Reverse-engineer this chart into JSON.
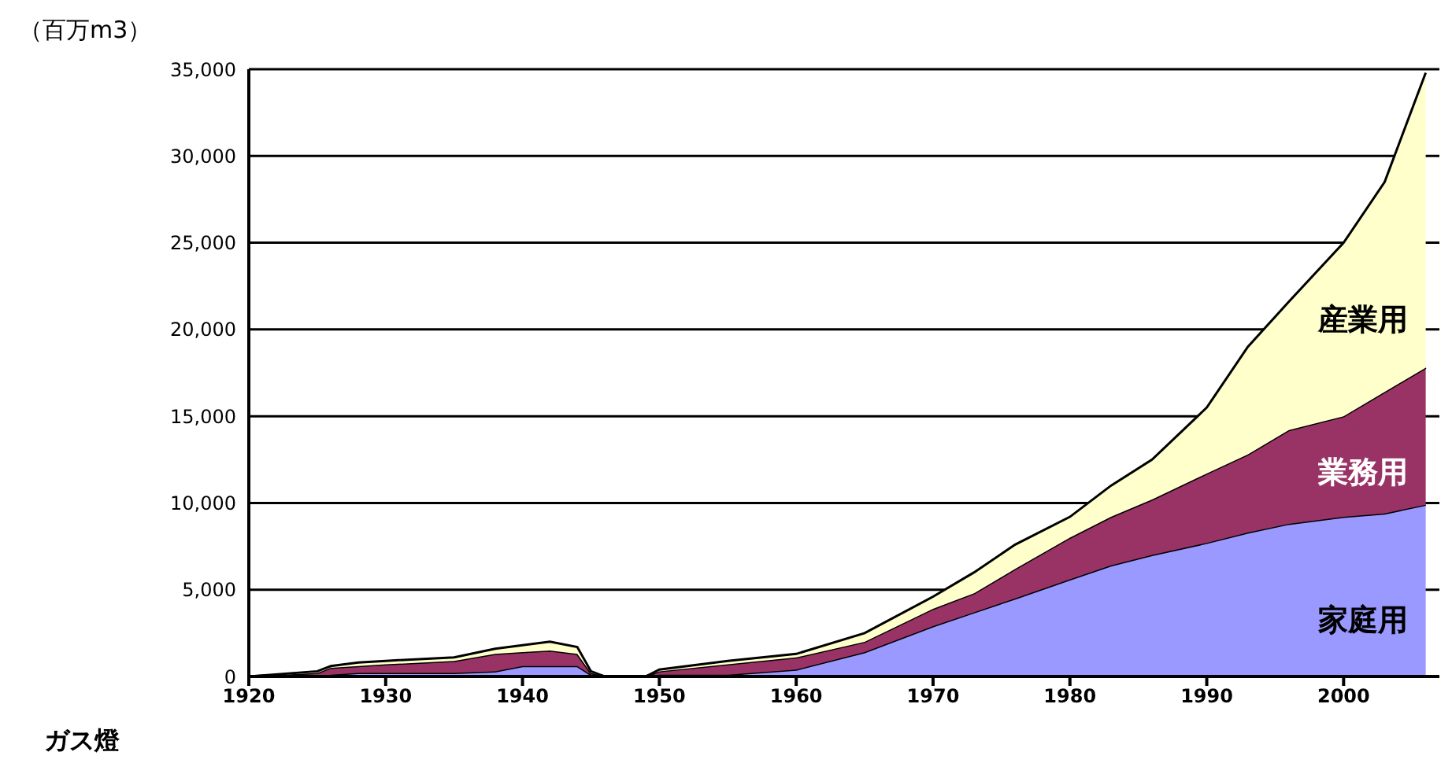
{
  "chart_data": {
    "type": "area",
    "stacked": true,
    "ylabel": "（百万m3）",
    "annotations": [
      "ガス燈"
    ],
    "x": [
      1920,
      1925,
      1926,
      1928,
      1930,
      1935,
      1938,
      1940,
      1942,
      1944,
      1945,
      1946,
      1949,
      1950,
      1955,
      1960,
      1965,
      1970,
      1973,
      1976,
      1980,
      1983,
      1986,
      1990,
      1993,
      1996,
      2000,
      2003,
      2006
    ],
    "series": [
      {
        "name": "家庭用",
        "color": "#9999ff",
        "values": [
          0,
          0,
          100,
          200,
          200,
          200,
          300,
          600,
          600,
          600,
          100,
          0,
          0,
          100,
          100,
          400,
          1400,
          2900,
          3700,
          4500,
          5600,
          6400,
          7000,
          7700,
          8300,
          8800,
          9200,
          9400,
          9900
        ]
      },
      {
        "name": "業務用",
        "color": "#993366",
        "values": [
          0,
          200,
          400,
          400,
          500,
          700,
          1000,
          800,
          900,
          700,
          100,
          0,
          0,
          200,
          600,
          700,
          600,
          1000,
          1100,
          1700,
          2400,
          2800,
          3200,
          4000,
          4500,
          5400,
          5800,
          7000,
          7900
        ]
      },
      {
        "name": "産業用",
        "color": "#ffffcc",
        "values": [
          0,
          100,
          100,
          200,
          200,
          200,
          300,
          400,
          500,
          400,
          100,
          0,
          0,
          100,
          200,
          200,
          500,
          700,
          1200,
          1400,
          1200,
          1800,
          2300,
          3800,
          6200,
          7400,
          10000,
          12100,
          17000
        ]
      }
    ],
    "xlim": [
      1920,
      2007
    ],
    "xticks": [
      1920,
      1930,
      1940,
      1950,
      1960,
      1970,
      1980,
      1990,
      2000
    ],
    "ylim": [
      0,
      35000
    ],
    "yticks": [
      0,
      {
        "value": 5000,
        "label": "5,000"
      },
      {
        "value": 10000,
        "label": "10,000"
      },
      {
        "value": 15000,
        "label": "15,000"
      },
      {
        "value": 20000,
        "label": "20,000"
      },
      {
        "value": 25000,
        "label": "25,000"
      },
      {
        "value": 30000,
        "label": "30,000"
      },
      {
        "value": 35000,
        "label": "35,000"
      }
    ],
    "grid": "y"
  }
}
